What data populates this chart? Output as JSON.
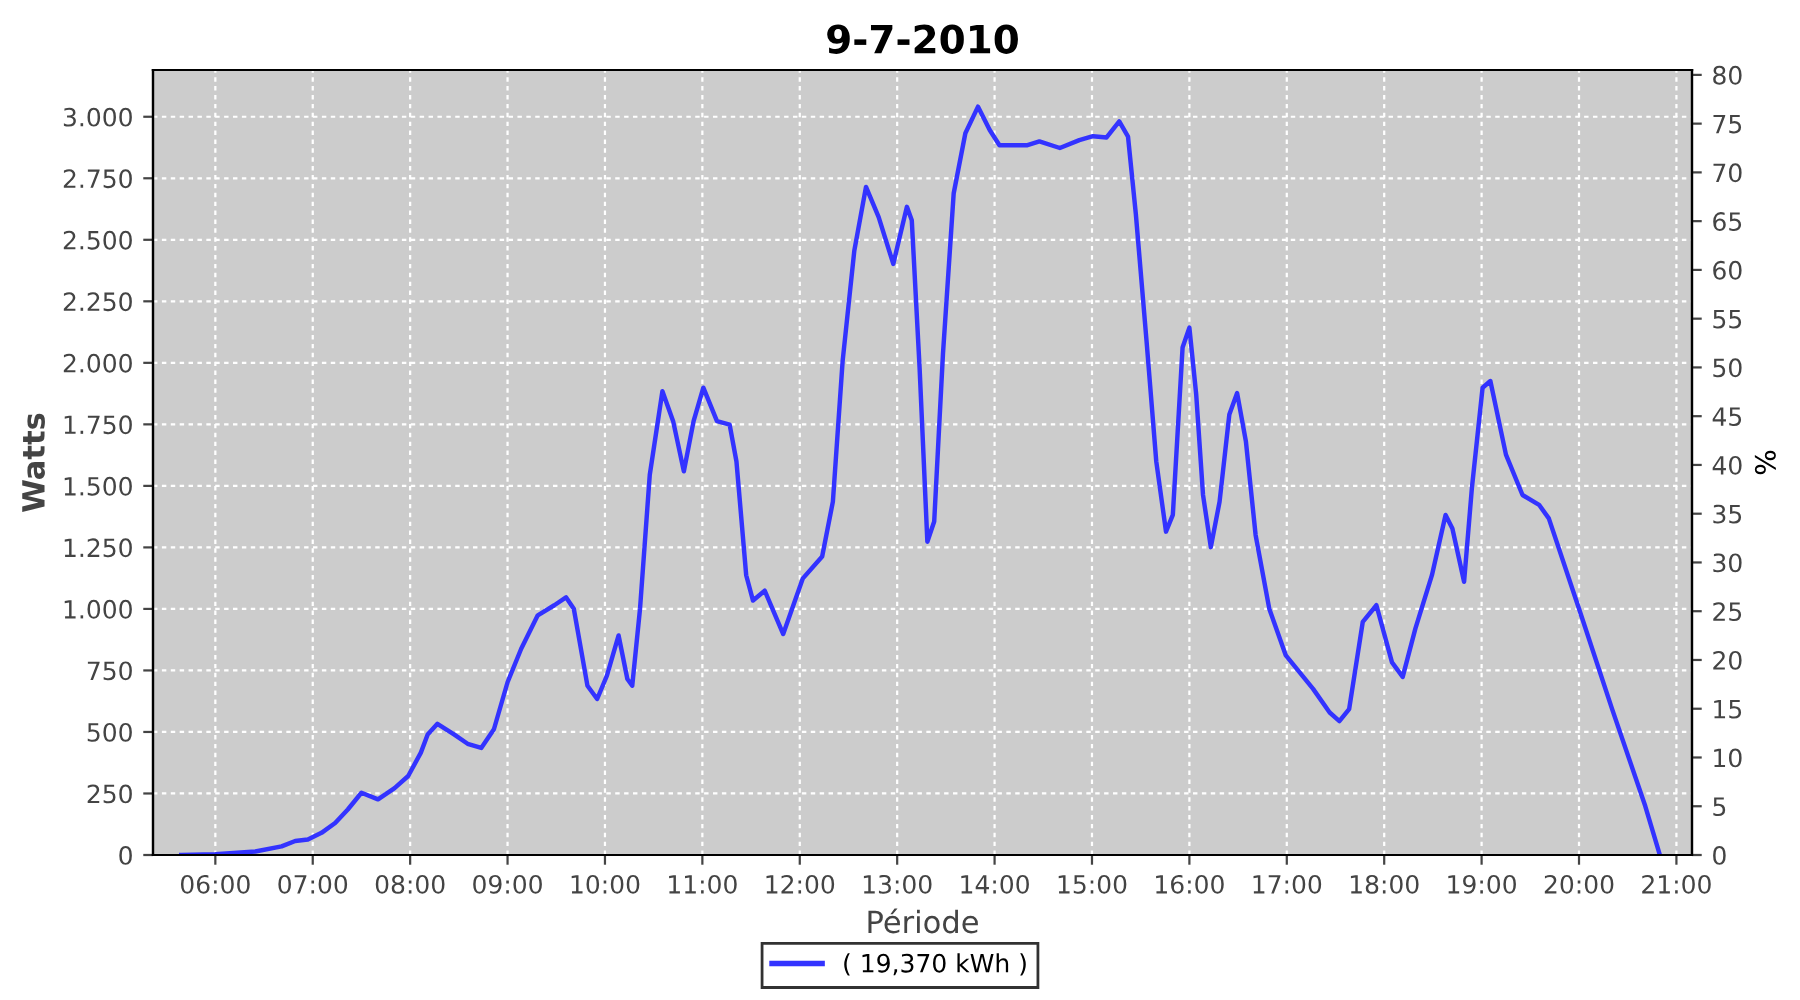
{
  "chart_data": {
    "type": "line",
    "title": "9-7-2010",
    "xlabel": "Période",
    "ylabel": "Watts",
    "y2label": "%",
    "xlim": [
      5.36,
      21.16
    ],
    "xticks": [
      {
        "value": 6,
        "label": "06:00"
      },
      {
        "value": 7,
        "label": "07:00"
      },
      {
        "value": 8,
        "label": "08:00"
      },
      {
        "value": 9,
        "label": "09:00"
      },
      {
        "value": 10,
        "label": "10:00"
      },
      {
        "value": 11,
        "label": "11:00"
      },
      {
        "value": 12,
        "label": "12:00"
      },
      {
        "value": 13,
        "label": "13:00"
      },
      {
        "value": 14,
        "label": "14:00"
      },
      {
        "value": 15,
        "label": "15:00"
      },
      {
        "value": 16,
        "label": "16:00"
      },
      {
        "value": 17,
        "label": "17:00"
      },
      {
        "value": 18,
        "label": "18:00"
      },
      {
        "value": 19,
        "label": "19:00"
      },
      {
        "value": 20,
        "label": "20:00"
      },
      {
        "value": 21,
        "label": "21:00"
      }
    ],
    "ylim": [
      0,
      3190
    ],
    "yticks": [
      0,
      250,
      500,
      750,
      {
        "value": 1000,
        "label": "1.000"
      },
      {
        "value": 1250,
        "label": "1.250"
      },
      {
        "value": 1500,
        "label": "1.500"
      },
      {
        "value": 1750,
        "label": "1.750"
      },
      {
        "value": 2000,
        "label": "2.000"
      },
      {
        "value": 2250,
        "label": "2.250"
      },
      {
        "value": 2500,
        "label": "2.500"
      },
      {
        "value": 2750,
        "label": "2.750"
      },
      {
        "value": 3000,
        "label": "3.000"
      }
    ],
    "y2lim": [
      0,
      80.5
    ],
    "y2ticks": [
      0,
      5,
      10,
      15,
      20,
      25,
      30,
      35,
      40,
      45,
      50,
      55,
      60,
      65,
      70,
      75,
      80
    ],
    "grid": true,
    "legend": "bottom",
    "line_style": "solid",
    "marker": "none",
    "series": [
      {
        "name": "( 19,370 kWh )",
        "color": "#3333ff",
        "x": [
          5.65,
          6.0,
          6.41,
          6.68,
          6.82,
          6.95,
          7.09,
          7.23,
          7.36,
          7.5,
          7.67,
          7.84,
          7.98,
          8.11,
          8.18,
          8.28,
          8.45,
          8.59,
          8.73,
          8.86,
          9.0,
          9.14,
          9.31,
          9.48,
          9.6,
          9.68,
          9.82,
          9.92,
          10.02,
          10.14,
          10.23,
          10.28,
          10.36,
          10.46,
          10.59,
          10.7,
          10.81,
          10.91,
          11.01,
          11.15,
          11.28,
          11.35,
          11.45,
          11.52,
          11.64,
          11.83,
          12.03,
          12.23,
          12.34,
          12.44,
          12.56,
          12.68,
          12.81,
          12.96,
          13.1,
          13.15,
          13.23,
          13.31,
          13.38,
          13.47,
          13.58,
          13.7,
          13.83,
          13.95,
          14.05,
          14.33,
          14.46,
          14.67,
          14.87,
          15.01,
          15.15,
          15.28,
          15.37,
          15.45,
          15.56,
          15.66,
          15.76,
          15.83,
          15.93,
          16.0,
          16.07,
          16.14,
          16.22,
          16.31,
          16.41,
          16.49,
          16.58,
          16.68,
          16.82,
          16.99,
          17.27,
          17.44,
          17.54,
          17.64,
          17.78,
          17.92,
          18.08,
          18.19,
          18.32,
          18.49,
          18.63,
          18.7,
          18.82,
          18.9,
          19.01,
          19.09,
          19.25,
          19.42,
          19.59,
          19.69,
          20.0,
          20.34,
          20.68,
          20.83
        ],
        "values": [
          0,
          3,
          14,
          35,
          57,
          63,
          90,
          130,
          185,
          253,
          226,
          272,
          321,
          416,
          490,
          533,
          490,
          452,
          435,
          511,
          702,
          838,
          974,
          1015,
          1047,
          1001,
          688,
          634,
          729,
          892,
          715,
          688,
          1001,
          1545,
          1885,
          1763,
          1559,
          1763,
          1899,
          1763,
          1749,
          1599,
          1137,
          1034,
          1074,
          898,
          1123,
          1213,
          1436,
          2007,
          2456,
          2715,
          2592,
          2402,
          2634,
          2579,
          1981,
          1273,
          1355,
          2035,
          2688,
          2933,
          3041,
          2946,
          2884,
          2884,
          2900,
          2873,
          2905,
          2921,
          2916,
          2981,
          2919,
          2606,
          2089,
          1599,
          1314,
          1382,
          2062,
          2143,
          1871,
          1463,
          1251,
          1436,
          1790,
          1877,
          1681,
          1300,
          1001,
          811,
          675,
          579,
          544,
          593,
          947,
          1015,
          783,
          724,
          920,
          1137,
          1382,
          1327,
          1110,
          1490,
          1899,
          1926,
          1627,
          1463,
          1423,
          1368,
          1001,
          593,
          199,
          0
        ]
      }
    ]
  }
}
